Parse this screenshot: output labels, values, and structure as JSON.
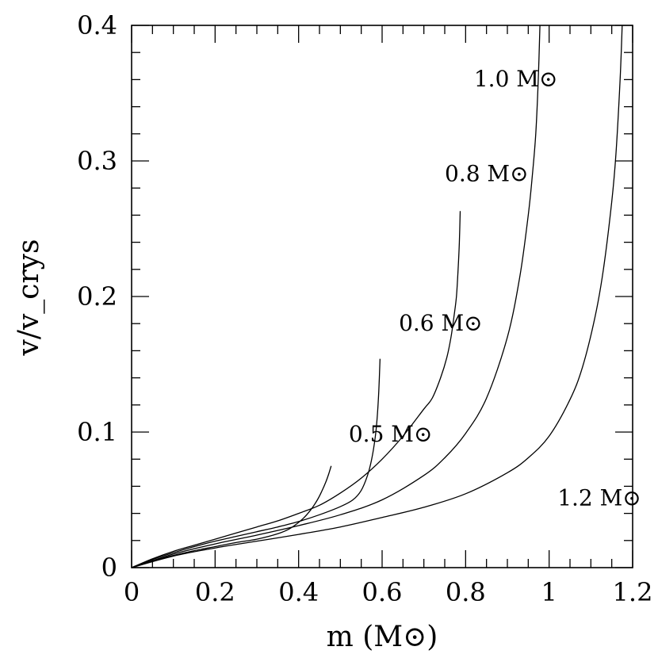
{
  "chart_data": {
    "type": "line",
    "xlabel": "m (M⊙)",
    "ylabel": "v/v_crys",
    "xlim": [
      0,
      1.2
    ],
    "ylim": [
      0,
      0.4
    ],
    "x_ticks": [
      "0",
      "0.2",
      "0.4",
      "0.6",
      "0.8",
      "1",
      "1.2"
    ],
    "y_ticks": [
      "0",
      "0.1",
      "0.2",
      "0.3",
      "0.4"
    ],
    "x_tick_values": [
      0,
      0.2,
      0.4,
      0.6,
      0.8,
      1.0,
      1.2
    ],
    "y_tick_values": [
      0,
      0.1,
      0.2,
      0.3,
      0.4
    ],
    "x_minor_step": 0.05,
    "y_minor_step": 0.02,
    "grid": false,
    "series": [
      {
        "name": "0.5 M⊙",
        "label_at": [
          0.52,
          0.093
        ],
        "x": [
          0,
          0.05,
          0.1,
          0.15,
          0.2,
          0.25,
          0.3,
          0.35,
          0.38,
          0.41,
          0.43,
          0.445,
          0.455,
          0.465,
          0.472,
          0.476,
          0.478
        ],
        "y": [
          0,
          0.005,
          0.009,
          0.0125,
          0.0155,
          0.0185,
          0.021,
          0.025,
          0.029,
          0.036,
          0.043,
          0.05,
          0.056,
          0.063,
          0.069,
          0.073,
          0.075
        ]
      },
      {
        "name": "0.6 M⊙",
        "label_at": [
          0.64,
          0.175
        ],
        "x": [
          0,
          0.05,
          0.1,
          0.15,
          0.2,
          0.25,
          0.3,
          0.35,
          0.4,
          0.45,
          0.5,
          0.53,
          0.55,
          0.565,
          0.575,
          0.583,
          0.588,
          0.592,
          0.595
        ],
        "y": [
          0,
          0.006,
          0.011,
          0.0155,
          0.0195,
          0.023,
          0.0265,
          0.03,
          0.034,
          0.039,
          0.045,
          0.05,
          0.057,
          0.068,
          0.08,
          0.095,
          0.11,
          0.13,
          0.154
        ]
      },
      {
        "name": "0.8 M⊙",
        "label_at": [
          0.75,
          0.285
        ],
        "x": [
          0,
          0.05,
          0.1,
          0.15,
          0.2,
          0.25,
          0.3,
          0.35,
          0.4,
          0.45,
          0.5,
          0.55,
          0.6,
          0.65,
          0.7,
          0.72,
          0.74,
          0.755,
          0.765,
          0.772,
          0.778,
          0.782,
          0.785,
          0.787
        ],
        "y": [
          0,
          0.0065,
          0.012,
          0.0165,
          0.021,
          0.0255,
          0.03,
          0.0345,
          0.04,
          0.046,
          0.055,
          0.066,
          0.08,
          0.097,
          0.117,
          0.125,
          0.14,
          0.155,
          0.17,
          0.185,
          0.2,
          0.22,
          0.24,
          0.263
        ]
      },
      {
        "name": "1.0 M⊙",
        "label_at": [
          0.82,
          0.355
        ],
        "x": [
          0,
          0.1,
          0.2,
          0.3,
          0.4,
          0.5,
          0.6,
          0.7,
          0.75,
          0.8,
          0.85,
          0.9,
          0.93,
          0.95,
          0.96,
          0.968,
          0.974,
          0.978
        ],
        "y": [
          0,
          0.01,
          0.0175,
          0.024,
          0.031,
          0.039,
          0.05,
          0.068,
          0.081,
          0.099,
          0.125,
          0.17,
          0.215,
          0.26,
          0.29,
          0.32,
          0.36,
          0.4
        ]
      },
      {
        "name": "1.2 M⊙",
        "label_at": [
          1.02,
          0.046
        ],
        "x": [
          0,
          0.1,
          0.2,
          0.3,
          0.4,
          0.5,
          0.6,
          0.7,
          0.8,
          0.9,
          0.95,
          1.0,
          1.05,
          1.08,
          1.11,
          1.13,
          1.15,
          1.16,
          1.17,
          1.175
        ],
        "y": [
          0,
          0.0085,
          0.0145,
          0.0195,
          0.0245,
          0.03,
          0.037,
          0.0445,
          0.0545,
          0.07,
          0.081,
          0.097,
          0.124,
          0.148,
          0.185,
          0.22,
          0.27,
          0.305,
          0.36,
          0.4
        ]
      }
    ]
  }
}
